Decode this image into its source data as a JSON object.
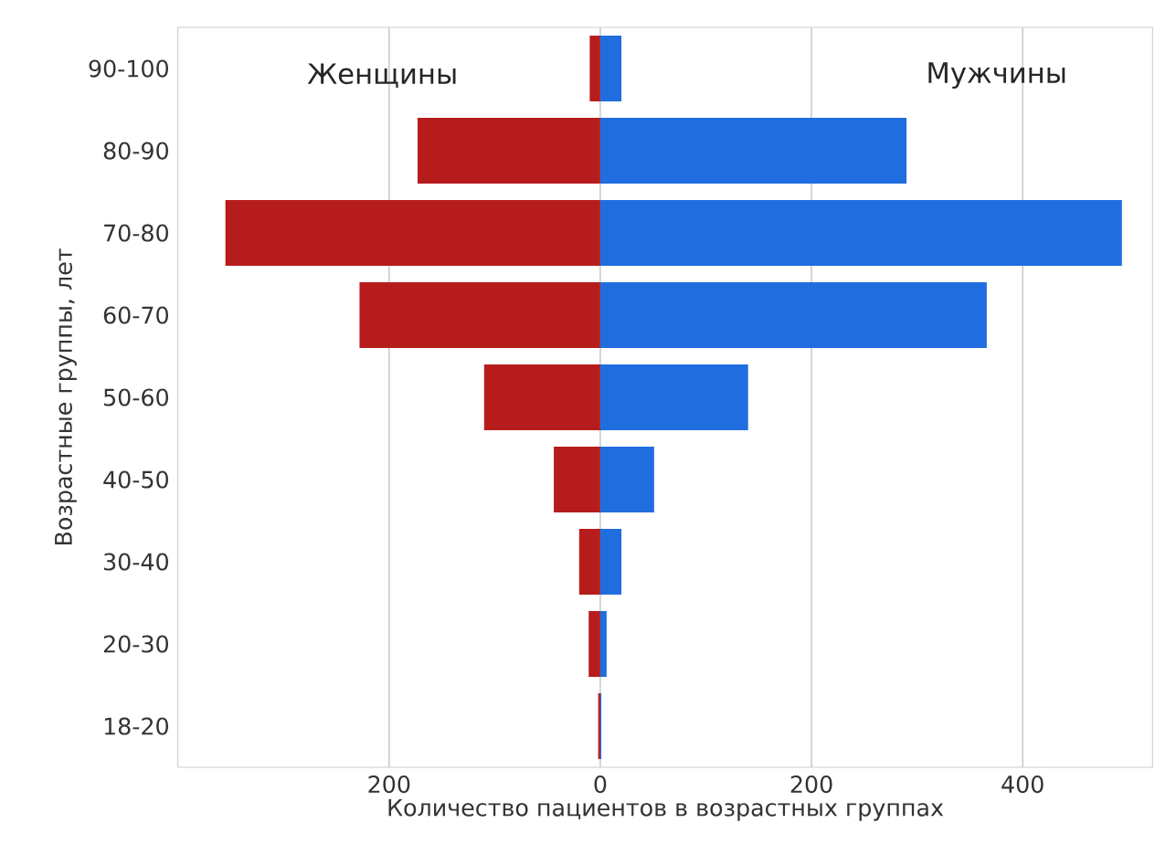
{
  "chart_data": {
    "type": "bar",
    "orientation": "horizontal",
    "xlabel": "Количество пациентов в возрастных группах",
    "ylabel": "Возрастные группы, лет",
    "categories": [
      "90-100",
      "80-90",
      "70-80",
      "60-70",
      "50-60",
      "40-50",
      "30-40",
      "20-30",
      "18-20"
    ],
    "series": [
      {
        "name": "Женщины",
        "color": "#b71c1c",
        "values": [
          -10,
          -173,
          -355,
          -228,
          -110,
          -44,
          -20,
          -11,
          -2
        ]
      },
      {
        "name": "Мужчины",
        "color": "#206ddf",
        "values": [
          20,
          290,
          494,
          366,
          140,
          51,
          20,
          6,
          1
        ]
      }
    ],
    "xlim": [
      -400,
      523
    ],
    "xticks": [
      {
        "value": -200,
        "label": "200"
      },
      0,
      200,
      400
    ],
    "grid": "x",
    "stacked": true
  }
}
